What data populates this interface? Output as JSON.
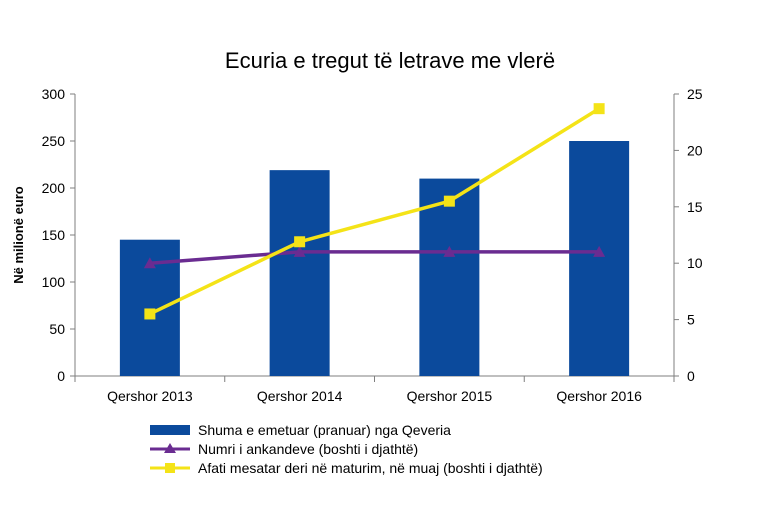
{
  "chart_data": {
    "type": "bar",
    "title": "Ecuria e tregut të letrave  me vlerë",
    "ylabel": "Në milionë euro",
    "y2label": "",
    "categories": [
      "Qershor 2013",
      "Qershor 2014",
      "Qershor 2015",
      "Qershor 2016"
    ],
    "ylim": [
      0,
      300
    ],
    "yticks": [
      0,
      50,
      100,
      150,
      200,
      250,
      300
    ],
    "y2lim": [
      0,
      25
    ],
    "y2ticks": [
      0,
      5,
      10,
      15,
      20,
      25
    ],
    "grid": false,
    "legend_position": "bottom",
    "series": [
      {
        "name": "Shuma e emetuar (pranuar) nga Qeveria",
        "kind": "bar",
        "axis": "left",
        "color": "#0b4a9c",
        "values": [
          145,
          219,
          210,
          250
        ]
      },
      {
        "name": "Numri i ankandeve (boshti i djathtë)",
        "kind": "line",
        "axis": "right",
        "marker": "triangle",
        "color": "#6a2c91",
        "values": [
          10,
          11,
          11,
          11
        ]
      },
      {
        "name": "Afati mesatar deri në maturim, në muaj (boshti i djathtë)",
        "kind": "line",
        "axis": "right",
        "marker": "square",
        "color": "#f4e317",
        "values": [
          5.5,
          11.9,
          15.5,
          23.7
        ]
      }
    ]
  }
}
